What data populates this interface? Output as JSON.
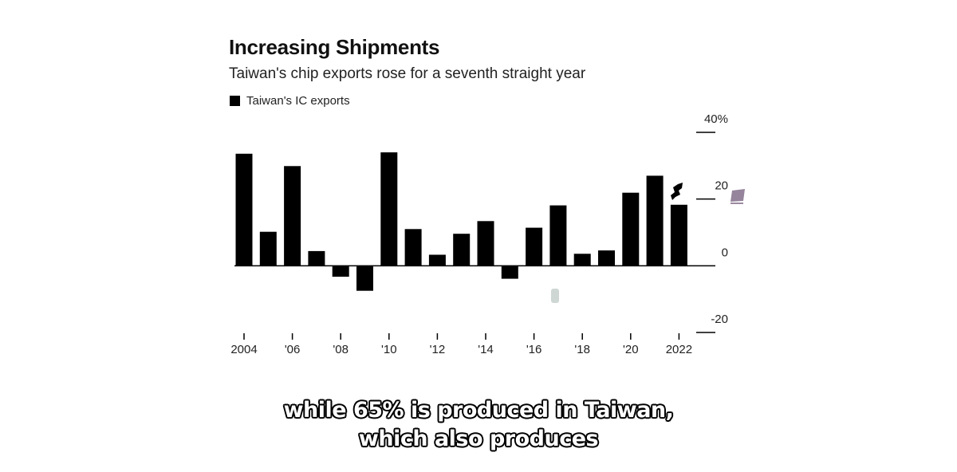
{
  "chart_data": {
    "type": "bar",
    "title": "Increasing Shipments",
    "subtitle": "Taiwan's chip exports rose for a seventh straight year",
    "legend": {
      "placement": "top-left",
      "entries": [
        "Taiwan's IC exports"
      ]
    },
    "x": [
      2004,
      2005,
      2006,
      2007,
      2008,
      2009,
      2010,
      2011,
      2012,
      2013,
      2014,
      2015,
      2016,
      2017,
      2018,
      2019,
      2020,
      2021,
      2022
    ],
    "series": [
      {
        "name": "Taiwan's IC exports",
        "values": [
          33.6,
          10.2,
          29.9,
          4.4,
          -3.3,
          -7.5,
          34.0,
          11.0,
          3.3,
          9.6,
          13.4,
          -3.9,
          11.4,
          18.1,
          3.6,
          4.6,
          21.9,
          27.0,
          18.3
        ]
      }
    ],
    "ylim": [
      -20,
      40
    ],
    "yticks": [
      -20,
      0,
      20,
      40
    ],
    "ytick_labels": [
      "-20",
      "0",
      "20",
      "40%"
    ],
    "xticks": [
      2004,
      2006,
      2008,
      2010,
      2012,
      2014,
      2016,
      2018,
      2020,
      2022
    ],
    "xtick_labels": [
      "2004",
      "'06",
      "'08",
      "'10",
      "'12",
      "'14",
      "'16",
      "'18",
      "'20",
      "2022"
    ],
    "y_axis_side": "right",
    "grid": false,
    "colors": {
      "bars": "#000000",
      "axis": "#000000"
    }
  },
  "caption": {
    "line1": "while 65% is produced in Taiwan,",
    "line2": "which also produces"
  }
}
